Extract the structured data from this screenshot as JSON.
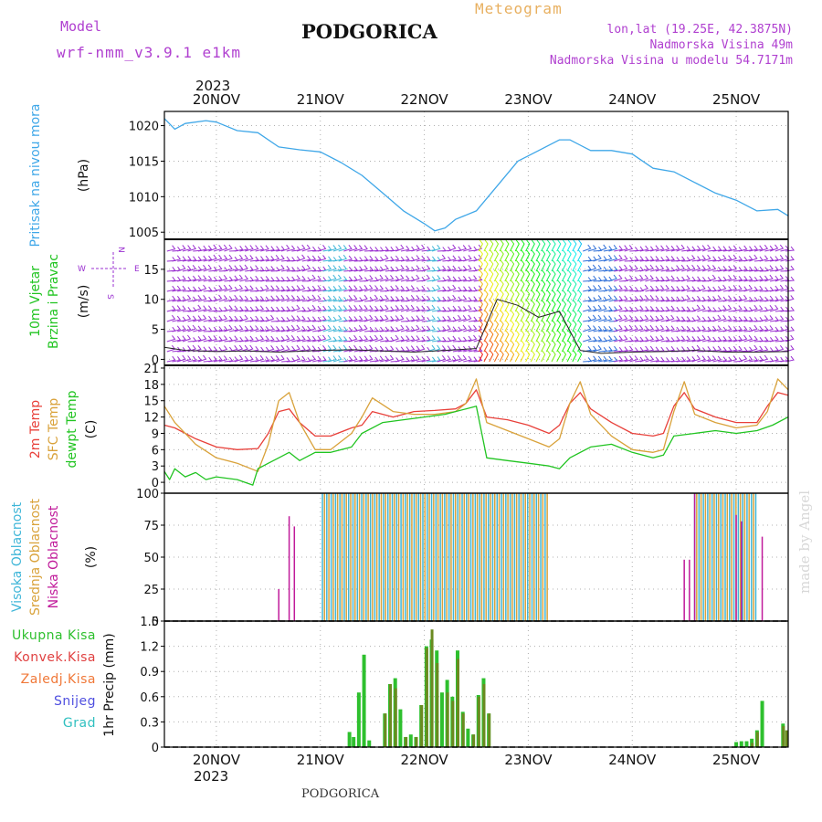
{
  "header": {
    "model_label": "Model",
    "model_name": "wrf-nmm_v3.9.1 e1km",
    "station": "PODGORICA",
    "product": "Meteogram",
    "lonlat": "lon,lat (19.25E, 42.3875N)",
    "elevation": "Nadmorska Visina 49m",
    "model_elevation": "Nadmorska Visina u modelu 54.7171m",
    "footer_station": "PODGORICA",
    "watermark": "made by Angel"
  },
  "colors": {
    "pressure": "#3fa7e8",
    "t2m": "#e8403a",
    "sfc": "#d9a23a",
    "dewpt": "#21c421",
    "cloud_high": "#3fb6d8",
    "cloud_mid": "#d9a23a",
    "cloud_low": "#c01a9a",
    "precip_total": "#2ec02e",
    "precip_conv": "#e04040",
    "precip_mix": "#6b8a20",
    "wind": "#9a2fd0",
    "title_purple": "#b040d0",
    "meteogram_orange": "#e8b060"
  },
  "chart_data": {
    "type": "line",
    "time_axis": {
      "top_year": "2023",
      "bottom_year": "2023",
      "ticks": [
        "20NOV",
        "21NOV",
        "22NOV",
        "23NOV",
        "24NOV",
        "25NOV"
      ],
      "start_day": 19.5,
      "end_day": 25.5,
      "grid": true
    },
    "panels": [
      {
        "id": "pressure",
        "ylabel": "Pritisak na nivou mora",
        "unit": "(hPa)",
        "ylim": [
          1004,
          1022
        ],
        "yticks": [
          "1005",
          "1010",
          "1015",
          "1020"
        ],
        "ytick_values": [
          1005,
          1010,
          1015,
          1020
        ],
        "series": [
          {
            "x": [
              19.5,
              19.6,
              19.7,
              19.9,
              20.0,
              20.2,
              20.4,
              20.6,
              20.8,
              21.0,
              21.2,
              21.4,
              21.6,
              21.8,
              22.0,
              22.1,
              22.2,
              22.3,
              22.5,
              22.7,
              22.9,
              23.1,
              23.3,
              23.4,
              23.6,
              23.8,
              24.0,
              24.2,
              24.4,
              24.6,
              24.8,
              25.0,
              25.2,
              25.4,
              25.5
            ],
            "y": [
              1021.0,
              1019.5,
              1020.3,
              1020.7,
              1020.5,
              1019.3,
              1019.0,
              1017.0,
              1016.6,
              1016.3,
              1014.8,
              1013.0,
              1010.5,
              1008.0,
              1006.2,
              1005.2,
              1005.6,
              1006.8,
              1008.0,
              1011.5,
              1015.0,
              1016.5,
              1018.0,
              1018.0,
              1016.5,
              1016.5,
              1016.0,
              1014.0,
              1013.5,
              1012.0,
              1010.5,
              1009.5,
              1008.0,
              1008.2,
              1007.3
            ]
          }
        ]
      },
      {
        "id": "wind",
        "ylabel": "10m Vjetar",
        "ylabel2": "Brzina i Pravac",
        "unit": "(m/s)",
        "compass": {
          "n": "N",
          "w": "W",
          "e": "E",
          "s": "S"
        },
        "ylim": [
          -1,
          20
        ],
        "yticks": [
          "0",
          "5",
          "10",
          "15"
        ],
        "ytick_values": [
          0,
          5,
          10,
          15
        ],
        "series": [
          {
            "name": "mean",
            "x": [
              19.5,
              19.7,
              20.0,
              20.3,
              20.6,
              21.0,
              21.3,
              21.6,
              21.9,
              22.2,
              22.5,
              22.7,
              22.9,
              23.1,
              23.3,
              23.5,
              23.7,
              24.0,
              24.3,
              24.6,
              24.9,
              25.2,
              25.5
            ],
            "y": [
              2.0,
              1.5,
              1.3,
              1.4,
              1.2,
              1.5,
              1.6,
              1.4,
              1.2,
              1.5,
              1.8,
              10.0,
              9.0,
              7.0,
              8.0,
              1.5,
              1.0,
              1.2,
              1.3,
              1.5,
              1.2,
              1.2,
              1.3
            ]
          }
        ]
      },
      {
        "id": "temperature",
        "ylabel_lines": [
          "2m Temp",
          "SFC Temp",
          "dewpt Temp"
        ],
        "unit": "(C)",
        "ylim": [
          -2,
          21.5
        ],
        "yticks": [
          "0",
          "3",
          "6",
          "9",
          "12",
          "15",
          "18",
          "21"
        ],
        "ytick_values": [
          0,
          3,
          6,
          9,
          12,
          15,
          18,
          21
        ],
        "series": [
          {
            "name": "2m Temp",
            "x": [
              19.5,
              19.6,
              19.8,
              20.0,
              20.2,
              20.4,
              20.5,
              20.6,
              20.7,
              20.8,
              20.95,
              21.1,
              21.3,
              21.4,
              21.5,
              21.7,
              21.9,
              22.1,
              22.3,
              22.4,
              22.5,
              22.6,
              22.8,
              23.0,
              23.2,
              23.3,
              23.4,
              23.5,
              23.6,
              23.8,
              24.0,
              24.2,
              24.3,
              24.4,
              24.5,
              24.6,
              24.8,
              25.0,
              25.2,
              25.3,
              25.4,
              25.5
            ],
            "y": [
              10.5,
              10.0,
              8.0,
              6.5,
              6.0,
              6.2,
              9.0,
              13.0,
              13.5,
              11.0,
              8.5,
              8.5,
              10.0,
              10.5,
              13.0,
              12.0,
              13.0,
              13.2,
              13.5,
              14.5,
              17.0,
              12.0,
              11.5,
              10.5,
              9.0,
              10.5,
              14.5,
              16.5,
              13.5,
              11.0,
              9.0,
              8.5,
              9.0,
              14.0,
              16.5,
              13.5,
              12.0,
              11.0,
              11.0,
              14.0,
              16.5,
              16.0
            ]
          },
          {
            "name": "SFC Temp",
            "x": [
              19.5,
              19.6,
              19.8,
              20.0,
              20.2,
              20.4,
              20.5,
              20.6,
              20.7,
              20.8,
              20.95,
              21.1,
              21.3,
              21.4,
              21.5,
              21.7,
              21.9,
              22.1,
              22.3,
              22.4,
              22.5,
              22.6,
              22.8,
              23.0,
              23.2,
              23.3,
              23.4,
              23.5,
              23.6,
              23.8,
              24.0,
              24.2,
              24.3,
              24.4,
              24.5,
              24.6,
              24.8,
              25.0,
              25.2,
              25.3,
              25.4,
              25.5
            ],
            "y": [
              14.0,
              11.0,
              7.0,
              4.5,
              3.5,
              2.0,
              7.0,
              15.0,
              16.5,
              11.0,
              6.0,
              6.0,
              9.0,
              12.0,
              15.5,
              13.0,
              12.5,
              12.5,
              13.0,
              14.5,
              19.0,
              11.0,
              9.5,
              8.0,
              6.5,
              8.0,
              14.5,
              18.5,
              12.5,
              8.5,
              6.0,
              5.5,
              6.0,
              13.0,
              18.5,
              12.5,
              11.0,
              10.0,
              10.5,
              13.0,
              19.0,
              17.0
            ]
          },
          {
            "name": "dewpt Temp",
            "x": [
              19.5,
              19.55,
              19.6,
              19.7,
              19.8,
              19.9,
              20.0,
              20.2,
              20.35,
              20.4,
              20.5,
              20.6,
              20.7,
              20.8,
              20.95,
              21.1,
              21.3,
              21.4,
              21.6,
              21.8,
              22.0,
              22.2,
              22.4,
              22.5,
              22.6,
              22.8,
              23.0,
              23.2,
              23.3,
              23.4,
              23.6,
              23.8,
              24.0,
              24.2,
              24.3,
              24.4,
              24.6,
              24.8,
              25.0,
              25.2,
              25.35,
              25.5
            ],
            "y": [
              2.0,
              0.5,
              2.5,
              1.0,
              1.8,
              0.5,
              1.0,
              0.5,
              -0.5,
              2.5,
              3.5,
              4.5,
              5.5,
              4.0,
              5.5,
              5.5,
              6.5,
              9.0,
              11.0,
              11.5,
              12.0,
              12.5,
              13.5,
              14.0,
              4.5,
              4.0,
              3.5,
              3.0,
              2.5,
              4.5,
              6.5,
              7.0,
              5.5,
              4.5,
              5.0,
              8.5,
              9.0,
              9.5,
              9.0,
              9.5,
              10.5,
              12.0
            ]
          }
        ]
      },
      {
        "id": "clouds",
        "ylabel_lines": [
          "Visoka Oblacnost",
          "Srednja Oblacnost",
          "Niska Oblacnost"
        ],
        "unit": "(%)",
        "ylim": [
          0,
          100
        ],
        "yticks": [
          "0",
          "25",
          "50",
          "75",
          "100"
        ],
        "ytick_values": [
          0,
          25,
          50,
          75,
          100
        ],
        "type": "bar",
        "low_bars": {
          "x": [
            20.6,
            20.7,
            20.75,
            24.5,
            24.55,
            24.6,
            25.0,
            25.05,
            25.25
          ],
          "y": [
            25,
            82,
            74,
            48,
            48,
            100,
            83,
            78,
            66
          ]
        },
        "high_band": {
          "start": 21.02,
          "end": 23.18,
          "value": 100
        },
        "mid_band": {
          "start": 21.02,
          "end": 23.22,
          "value": 100
        },
        "high_band2": {
          "start": 24.6,
          "end": 25.2,
          "value": 100
        },
        "mid_band2": {
          "start": 24.6,
          "end": 25.2,
          "value": 100
        }
      },
      {
        "id": "precip",
        "ylabel_lines": [
          "Ukupna Kisa",
          "Konvek.Kisa",
          "Zaledj.Kisa",
          "Snijeg",
          "Grad"
        ],
        "ylabel_colors": [
          "#2ec02e",
          "#e04040",
          "#f07838",
          "#5050e0",
          "#30c0c0"
        ],
        "unit": "1hr Precip (mm)",
        "ylim": [
          0,
          1.5
        ],
        "yticks": [
          "0",
          "0.3",
          "0.6",
          "0.9",
          "1.2",
          "1.5"
        ],
        "ytick_values": [
          0,
          0.3,
          0.6,
          0.9,
          1.2,
          1.5
        ],
        "type": "bar",
        "total": {
          "x": [
            21.28,
            21.32,
            21.37,
            21.42,
            21.47,
            21.62,
            21.67,
            21.72,
            21.77,
            21.82,
            21.87,
            21.92,
            21.97,
            22.02,
            22.07,
            22.12,
            22.17,
            22.22,
            22.27,
            22.32,
            22.37,
            22.42,
            22.47,
            22.52,
            22.57,
            22.62,
            25.0,
            25.05,
            25.1,
            25.15,
            25.2,
            25.25,
            25.45
          ],
          "y": [
            0.18,
            0.12,
            0.65,
            1.1,
            0.08,
            0.4,
            0.75,
            0.82,
            0.45,
            0.12,
            0.15,
            0.12,
            0.5,
            1.2,
            1.28,
            1.15,
            0.65,
            0.8,
            0.6,
            1.15,
            0.42,
            0.22,
            0.15,
            0.62,
            0.82,
            0.4,
            0.06,
            0.07,
            0.07,
            0.1,
            0.2,
            0.55,
            0.28
          ]
        },
        "convective": {
          "x": [
            21.62,
            21.67,
            21.72,
            21.82,
            21.92,
            21.97,
            22.02,
            22.07,
            22.12,
            22.22,
            22.27,
            22.32,
            22.37,
            22.47,
            22.52,
            22.57,
            22.62,
            25.15,
            25.2,
            25.45,
            25.48
          ],
          "y": [
            0.4,
            0.75,
            0.7,
            0.12,
            0.12,
            0.5,
            1.18,
            1.4,
            1.0,
            0.65,
            0.55,
            1.05,
            0.4,
            0.15,
            0.6,
            0.75,
            0.4,
            0.05,
            0.18,
            0.25,
            0.2
          ]
        }
      }
    ]
  }
}
